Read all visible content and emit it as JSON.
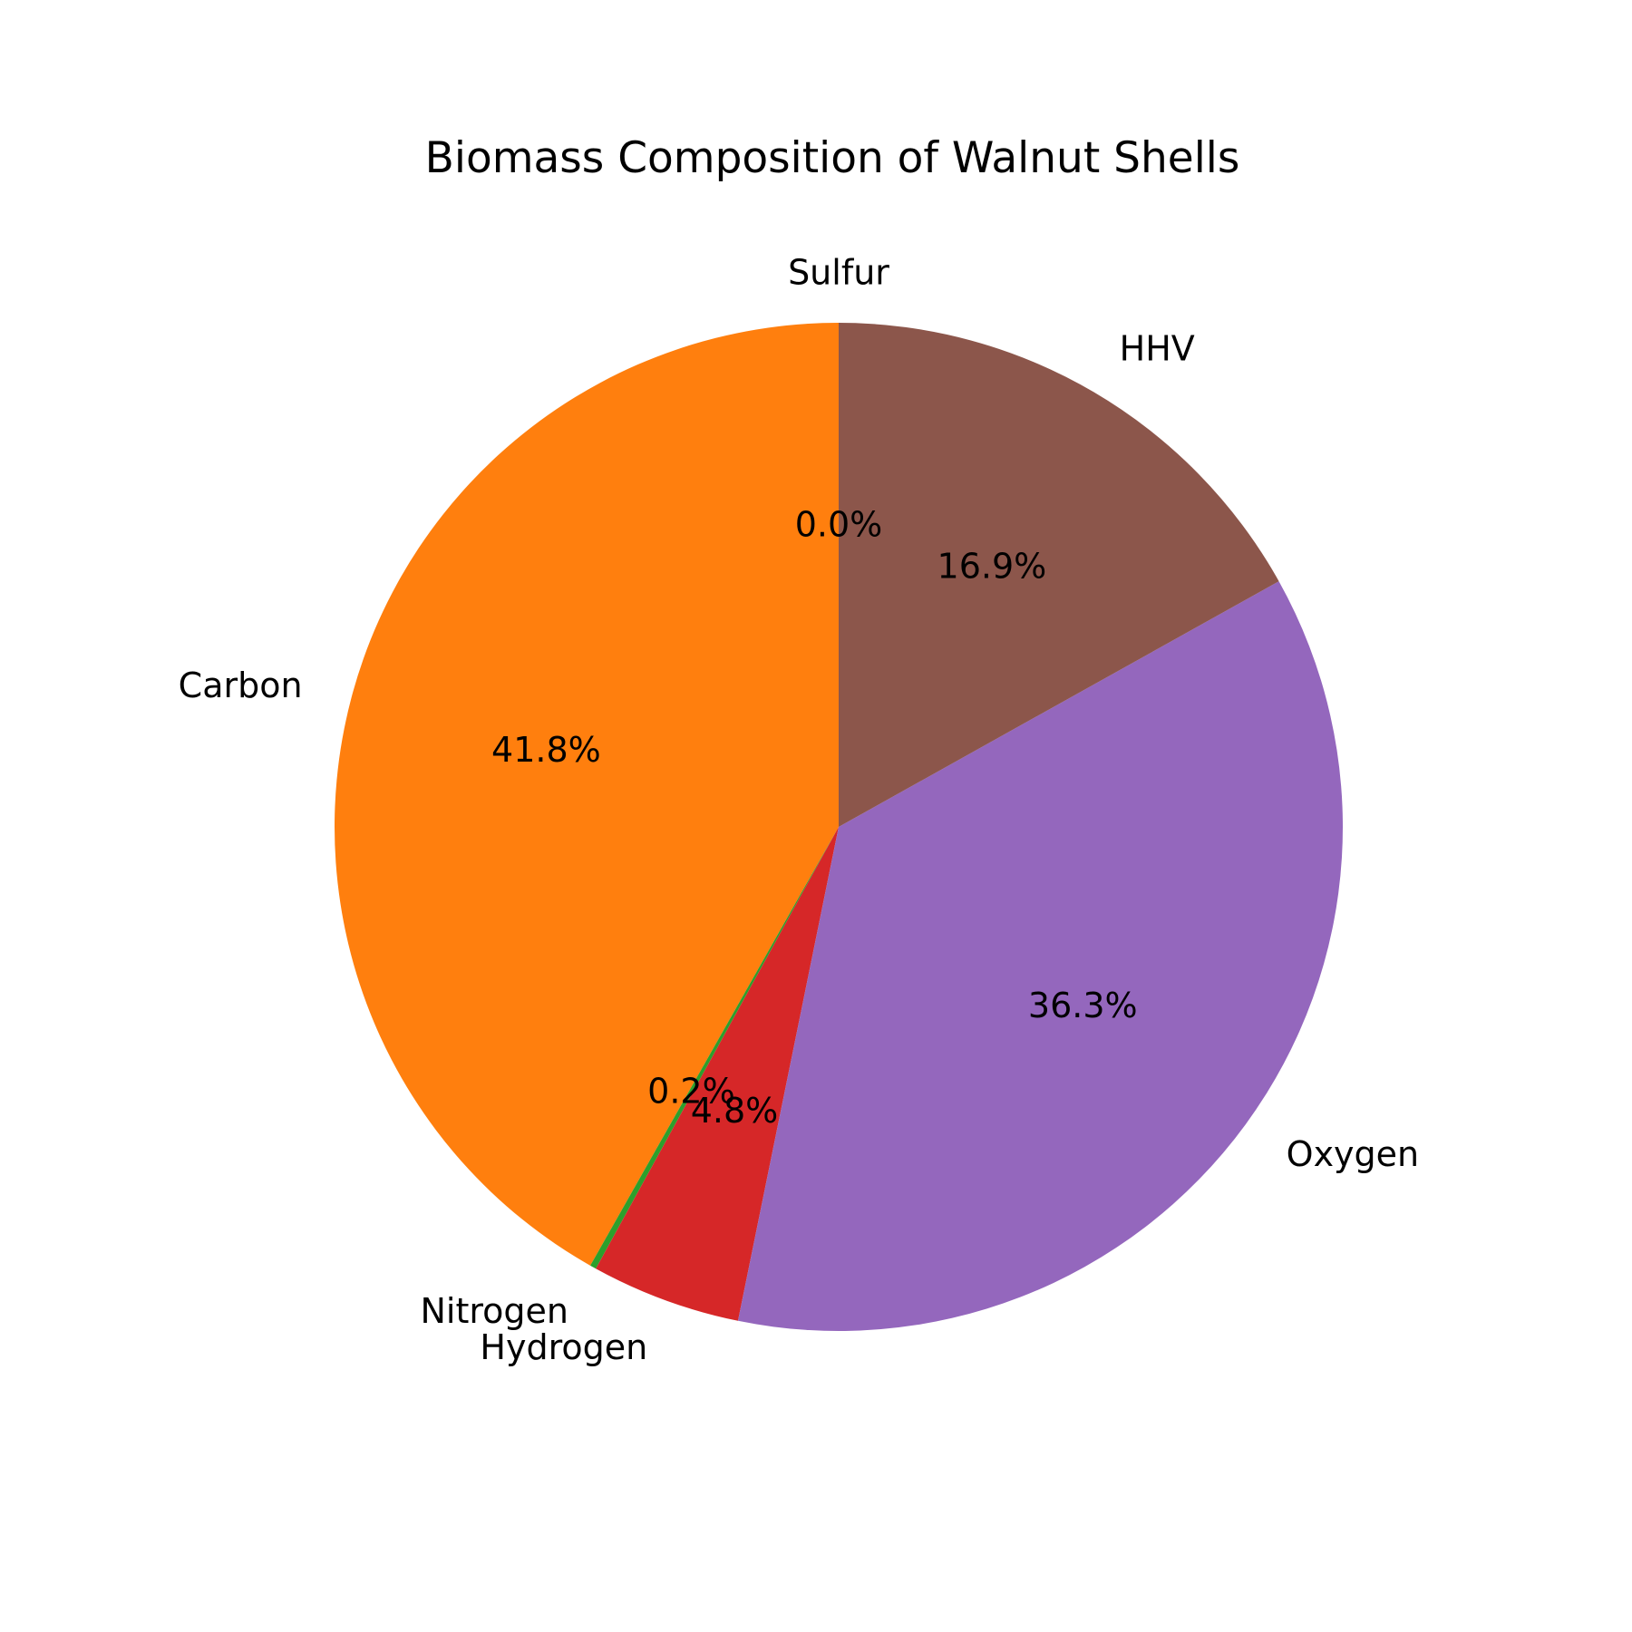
{
  "chart_data": {
    "type": "pie",
    "title": "Biomass Composition of  Walnut Shells",
    "start_angle_deg": 90,
    "direction": "counterclockwise",
    "slices": [
      {
        "label": "Carbon",
        "value": 41.8,
        "pct_label": "41.8%",
        "color": "#ff7f0e"
      },
      {
        "label": "Nitrogen",
        "value": 0.2,
        "pct_label": "0.2%",
        "color": "#2ca02c"
      },
      {
        "label": "Hydrogen",
        "value": 4.8,
        "pct_label": "4.8%",
        "color": "#d62728"
      },
      {
        "label": "Oxygen",
        "value": 36.3,
        "pct_label": "36.3%",
        "color": "#9467bd"
      },
      {
        "label": "HHV",
        "value": 16.9,
        "pct_label": "16.9%",
        "color": "#8c564b"
      },
      {
        "label": "Sulfur",
        "value": 0.0,
        "pct_label": "0.0%",
        "color": "#1f77b4"
      }
    ]
  }
}
